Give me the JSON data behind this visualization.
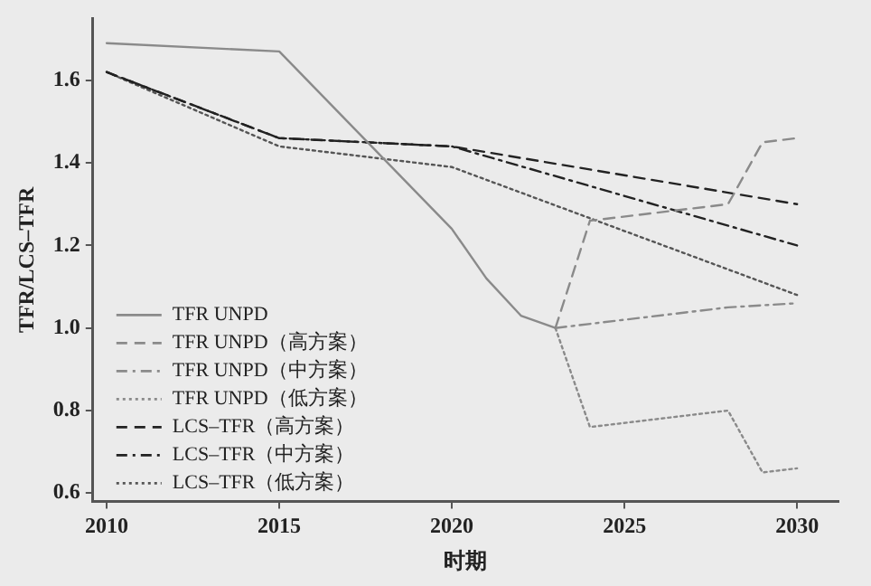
{
  "chart_data": {
    "type": "line",
    "xlabel": "时期",
    "ylabel": "TFR/LCS–TFR",
    "xlim": [
      2009.6,
      2031.2
    ],
    "xticks": [
      2010,
      2015,
      2020,
      2025,
      2030
    ],
    "ylim": [
      0.58,
      1.75
    ],
    "yticks": [
      {
        "value": 0.6,
        "label": "0.6"
      },
      {
        "value": 0.8,
        "label": "0.8"
      },
      {
        "value": 1.0,
        "label": "1.0"
      },
      {
        "value": 1.2,
        "label": "1.2"
      },
      {
        "value": 1.4,
        "label": "1.4"
      },
      {
        "value": 1.6,
        "label": "1.6"
      }
    ],
    "grid": false,
    "legend": "bottom left",
    "marker": "none",
    "series": [
      {
        "name": "TFR UNPD",
        "color": "#8a8a8a",
        "line_style": "solid",
        "x": [
          2010,
          2015,
          2020,
          2021,
          2022,
          2023
        ],
        "values": [
          1.69,
          1.67,
          1.24,
          1.12,
          1.03,
          1.0
        ]
      },
      {
        "name": "TFR UNPD（高方案）",
        "color": "#8a8a8a",
        "line_style": "dashed",
        "x": [
          2023,
          2024,
          2028,
          2029,
          2030
        ],
        "values": [
          1.0,
          1.26,
          1.3,
          1.45,
          1.46
        ]
      },
      {
        "name": "TFR UNPD（中方案）",
        "color": "#8a8a8a",
        "line_style": "dashdot",
        "x": [
          2023,
          2028,
          2030
        ],
        "values": [
          1.0,
          1.05,
          1.06
        ]
      },
      {
        "name": "TFR UNPD（低方案）",
        "color": "#8a8a8a",
        "line_style": "dotted",
        "x": [
          2023,
          2024,
          2028,
          2029,
          2030
        ],
        "values": [
          1.0,
          0.76,
          0.8,
          0.65,
          0.66
        ]
      },
      {
        "name": "LCS–TFR（高方案）",
        "color": "#222222",
        "line_style": "dashed",
        "x": [
          2010,
          2015,
          2020,
          2030
        ],
        "values": [
          1.62,
          1.46,
          1.44,
          1.3
        ]
      },
      {
        "name": "LCS–TFR（中方案）",
        "color": "#222222",
        "line_style": "dashdot",
        "x": [
          2010,
          2015,
          2020,
          2030
        ],
        "values": [
          1.62,
          1.46,
          1.44,
          1.2
        ]
      },
      {
        "name": "LCS–TFR（低方案）",
        "color": "#555555",
        "line_style": "dotted",
        "x": [
          2010,
          2015,
          2020,
          2030
        ],
        "values": [
          1.62,
          1.44,
          1.39,
          1.08
        ]
      }
    ]
  }
}
